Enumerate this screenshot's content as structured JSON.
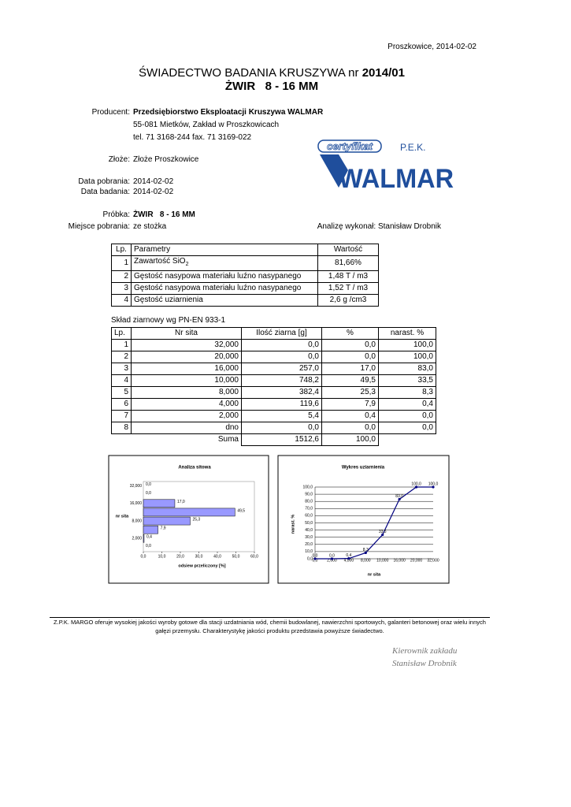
{
  "header": {
    "place_date": "Proszkowice, 2014-02-02",
    "title_prefix": "ŚWIADECTWO BADANIA KRUSZYWA nr ",
    "title_number": "2014/01",
    "subtitle": "ŻWIR   8 - 16 MM"
  },
  "producer": {
    "label": "Producent:",
    "name": "Przedsiębiorstwo Eksploatacji Kruszywa WALMAR",
    "address": "55-081 Mietków, Zakład w Proszkowicach",
    "contact": "tel. 71 3168-244 fax. 71 3169-022"
  },
  "logo": {
    "badge": "certyfikat",
    "org": "P.E.K.",
    "name": "WALMAR"
  },
  "deposit": {
    "label": "Złoże:",
    "value": "Złoże Proszkowice"
  },
  "dates": [
    {
      "label": "Data pobrania:",
      "value": "2014-02-02"
    },
    {
      "label": "Data badania:",
      "value": "2014-02-02"
    }
  ],
  "sample": {
    "label": "Próbka:",
    "value": "ŻWIR   8 - 16 MM"
  },
  "place": {
    "label": "Miejsce pobrania:",
    "value": "ze stożka"
  },
  "analyst": "Analizę wykonał: Stanisław Drobnik",
  "parameters": {
    "headers": [
      "Lp.",
      "Parametry",
      "Wartość"
    ],
    "rows": [
      [
        "1",
        {
          "text": "Zawartość SiO",
          "sub": "2"
        },
        "81,66%"
      ],
      [
        "2",
        "Gęstość nasypowa materiału luźno nasypanego",
        "1,48 T / m3"
      ],
      [
        "3",
        "Gęstość nasypowa materiału luźno nasypanego",
        "1,52 T / m3"
      ],
      [
        "4",
        "Gęstość uziarnienia",
        "2,6 g /cm3"
      ]
    ]
  },
  "grading": {
    "caption": "Skład ziarnowy wg PN-EN 933-1",
    "headers": [
      "Lp.",
      "Nr sita",
      "Ilość ziarna [g]",
      "%",
      "narast. %"
    ],
    "rows": [
      [
        "1",
        "32,000",
        "0,0",
        "0,0",
        "100,0"
      ],
      [
        "2",
        "20,000",
        "0,0",
        "0,0",
        "100,0"
      ],
      [
        "3",
        "16,000",
        "257,0",
        "17,0",
        "83,0"
      ],
      [
        "4",
        "10,000",
        "748,2",
        "49,5",
        "33,5"
      ],
      [
        "5",
        "8,000",
        "382,4",
        "25,3",
        "8,3"
      ],
      [
        "6",
        "4,000",
        "119,6",
        "7,9",
        "0,4"
      ],
      [
        "7",
        "2,000",
        "5,4",
        "0,4",
        "0,0"
      ],
      [
        "8",
        "dno",
        "0,0",
        "0,0",
        "0,0"
      ]
    ],
    "sum": {
      "label": "Suma",
      "mass": "1512,6",
      "percent": "100,0"
    }
  },
  "chart_data": [
    {
      "type": "bar",
      "orientation": "horizontal",
      "title": "Analiza sitowa",
      "x_label": "odsiew przeliczony [%]",
      "y_label": "nr sita",
      "categories": [
        "32,000",
        null,
        "16,000",
        null,
        "8,000",
        null,
        "2,000",
        null
      ],
      "values": [
        0,
        0,
        17,
        49.5,
        25.3,
        7.9,
        0.4,
        0
      ],
      "value_labels": [
        "0,0",
        "0,0",
        "17,0",
        "49,5",
        "25,3",
        "7,9",
        "0,4",
        "0,0"
      ],
      "color": "#9999ff",
      "xlim": [
        0,
        60
      ],
      "xticks": [
        {
          "value": 0,
          "label": "0,0"
        },
        {
          "value": 10,
          "label": "10,0"
        },
        {
          "value": 20,
          "label": "20,0"
        },
        {
          "value": 30,
          "label": "30,0"
        },
        {
          "value": 40,
          "label": "40,0"
        },
        {
          "value": 50,
          "label": "50,0"
        },
        {
          "value": 60,
          "label": "60,0"
        }
      ]
    },
    {
      "type": "line",
      "title": "Wykres uziarnienia",
      "x_label": "nr sita",
      "y_label": "narast. %",
      "categories": [
        "0,0",
        "2,000",
        "4,000",
        "8,000",
        "10,000",
        "16,000",
        "20,000",
        "32,000"
      ],
      "values": [
        0,
        0,
        0.4,
        8.3,
        33.5,
        83,
        100,
        100
      ],
      "value_labels": [
        "0,0",
        "0,0",
        "0,4",
        "8,3",
        "33,5",
        "83,0",
        "100,0",
        "100,0"
      ],
      "color": "#000080",
      "ylim": [
        0,
        100
      ],
      "grid": true,
      "yticks": [
        {
          "value": 0,
          "label": "0,0"
        },
        {
          "value": 10,
          "label": "10,0"
        },
        {
          "value": 20,
          "label": "20,0"
        },
        {
          "value": 30,
          "label": "30,0"
        },
        {
          "value": 40,
          "label": "40,0"
        },
        {
          "value": 50,
          "label": "50,0"
        },
        {
          "value": 60,
          "label": "60,0"
        },
        {
          "value": 70,
          "label": "70,0"
        },
        {
          "value": 80,
          "label": "80,0"
        },
        {
          "value": 90,
          "label": "90,0"
        },
        {
          "value": 100,
          "label": "100,0"
        }
      ]
    }
  ],
  "footer": [
    "Z.P.K. MARGO oferuje wysokiej jakości wyroby gotowe dla stacji uzdatniania wód, chemii budowlanej, nawierzchni sportowych, galanteri betonowej oraz wielu innych",
    "gałęzi przemysłu. Charakterystykę jakości produktu przedstawia powyższe świadectwo."
  ],
  "signature": [
    "Kierownik zakładu",
    "Stanisław Drobnik"
  ]
}
